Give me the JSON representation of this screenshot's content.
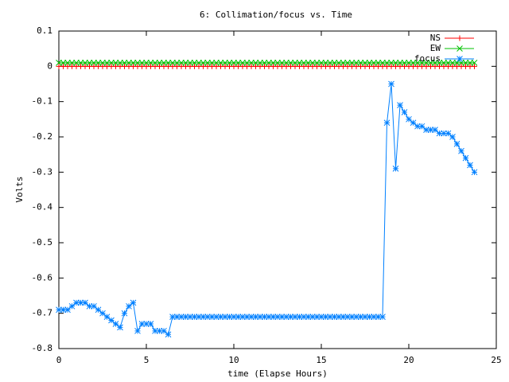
{
  "chart_data": {
    "type": "line",
    "title": "6: Collimation/focus vs. Time",
    "xlabel": "time (Elapse Hours)",
    "ylabel": "Volts",
    "xlim": [
      0,
      25
    ],
    "xticks": [
      0,
      5,
      10,
      15,
      20,
      25
    ],
    "ylim": [
      -0.8,
      0.1
    ],
    "yticks": [
      0.1,
      0,
      -0.1,
      -0.2,
      -0.3,
      -0.4,
      -0.5,
      -0.6,
      -0.7,
      -0.8
    ],
    "legend": "upper right",
    "x": [
      0,
      0.25,
      0.5,
      0.75,
      1,
      1.25,
      1.5,
      1.75,
      2,
      2.25,
      2.5,
      2.75,
      3,
      3.25,
      3.5,
      3.75,
      4,
      4.25,
      4.5,
      4.75,
      5,
      5.25,
      5.5,
      5.75,
      6,
      6.25,
      6.5,
      6.75,
      7,
      7.25,
      7.5,
      7.75,
      8,
      8.25,
      8.5,
      8.75,
      9,
      9.25,
      9.5,
      9.75,
      10,
      10.25,
      10.5,
      10.75,
      11,
      11.25,
      11.5,
      11.75,
      12,
      12.25,
      12.5,
      12.75,
      13,
      13.25,
      13.5,
      13.75,
      14,
      14.25,
      14.5,
      14.75,
      15,
      15.25,
      15.5,
      15.75,
      16,
      16.25,
      16.5,
      16.75,
      17,
      17.25,
      17.5,
      17.75,
      18,
      18.25,
      18.5,
      18.75,
      19,
      19.25,
      19.5,
      19.75,
      20,
      20.25,
      20.5,
      20.75,
      21,
      21.25,
      21.5,
      21.75,
      22,
      22.25,
      22.5,
      22.75,
      23,
      23.25,
      23.5,
      23.75
    ],
    "series": [
      {
        "name": "NS",
        "color": "#ff0000",
        "marker": "plus",
        "values": [
          0,
          0,
          0,
          0,
          0,
          0,
          0,
          0,
          0,
          0,
          0,
          0,
          0,
          0,
          0,
          0,
          0,
          0,
          0,
          0,
          0,
          0,
          0,
          0,
          0,
          0,
          0,
          0,
          0,
          0,
          0,
          0,
          0,
          0,
          0,
          0,
          0,
          0,
          0,
          0,
          0,
          0,
          0,
          0,
          0,
          0,
          0,
          0,
          0,
          0,
          0,
          0,
          0,
          0,
          0,
          0,
          0,
          0,
          0,
          0,
          0,
          0,
          0,
          0,
          0,
          0,
          0,
          0,
          0,
          0,
          0,
          0,
          0,
          0,
          0,
          0,
          0,
          0,
          0,
          0,
          0,
          0,
          0,
          0,
          0,
          0,
          0,
          0,
          0,
          0,
          0,
          0,
          0,
          0,
          0,
          0
        ]
      },
      {
        "name": "EW",
        "color": "#00c000",
        "marker": "cross",
        "values": [
          0.01,
          0.01,
          0.01,
          0.01,
          0.01,
          0.01,
          0.01,
          0.01,
          0.01,
          0.01,
          0.01,
          0.01,
          0.01,
          0.01,
          0.01,
          0.01,
          0.01,
          0.01,
          0.01,
          0.01,
          0.01,
          0.01,
          0.01,
          0.01,
          0.01,
          0.01,
          0.01,
          0.01,
          0.01,
          0.01,
          0.01,
          0.01,
          0.01,
          0.01,
          0.01,
          0.01,
          0.01,
          0.01,
          0.01,
          0.01,
          0.01,
          0.01,
          0.01,
          0.01,
          0.01,
          0.01,
          0.01,
          0.01,
          0.01,
          0.01,
          0.01,
          0.01,
          0.01,
          0.01,
          0.01,
          0.01,
          0.01,
          0.01,
          0.01,
          0.01,
          0.01,
          0.01,
          0.01,
          0.01,
          0.01,
          0.01,
          0.01,
          0.01,
          0.01,
          0.01,
          0.01,
          0.01,
          0.01,
          0.01,
          0.01,
          0.01,
          0.01,
          0.01,
          0.01,
          0.01,
          0.01,
          0.01,
          0.01,
          0.01,
          0.01,
          0.01,
          0.01,
          0.01,
          0.01,
          0.01,
          0.01,
          0.01,
          0.01,
          0.01,
          0.01,
          0.01
        ]
      },
      {
        "name": "focus",
        "color": "#0080ff",
        "marker": "star",
        "values": [
          -0.69,
          -0.69,
          -0.69,
          -0.68,
          -0.67,
          -0.67,
          -0.67,
          -0.68,
          -0.68,
          -0.69,
          -0.7,
          -0.71,
          -0.72,
          -0.73,
          -0.74,
          -0.7,
          -0.68,
          -0.67,
          -0.75,
          -0.73,
          -0.73,
          -0.73,
          -0.75,
          -0.75,
          -0.75,
          -0.76,
          -0.71,
          -0.71,
          -0.71,
          -0.71,
          -0.71,
          -0.71,
          -0.71,
          -0.71,
          -0.71,
          -0.71,
          -0.71,
          -0.71,
          -0.71,
          -0.71,
          -0.71,
          -0.71,
          -0.71,
          -0.71,
          -0.71,
          -0.71,
          -0.71,
          -0.71,
          -0.71,
          -0.71,
          -0.71,
          -0.71,
          -0.71,
          -0.71,
          -0.71,
          -0.71,
          -0.71,
          -0.71,
          -0.71,
          -0.71,
          -0.71,
          -0.71,
          -0.71,
          -0.71,
          -0.71,
          -0.71,
          -0.71,
          -0.71,
          -0.71,
          -0.71,
          -0.71,
          -0.71,
          -0.71,
          -0.71,
          -0.71,
          -0.16,
          -0.05,
          -0.29,
          -0.11,
          -0.13,
          -0.15,
          -0.16,
          -0.17,
          -0.17,
          -0.18,
          -0.18,
          -0.18,
          -0.19,
          -0.19,
          -0.19,
          -0.2,
          -0.22,
          -0.24,
          -0.26,
          -0.28,
          -0.3
        ]
      }
    ]
  }
}
